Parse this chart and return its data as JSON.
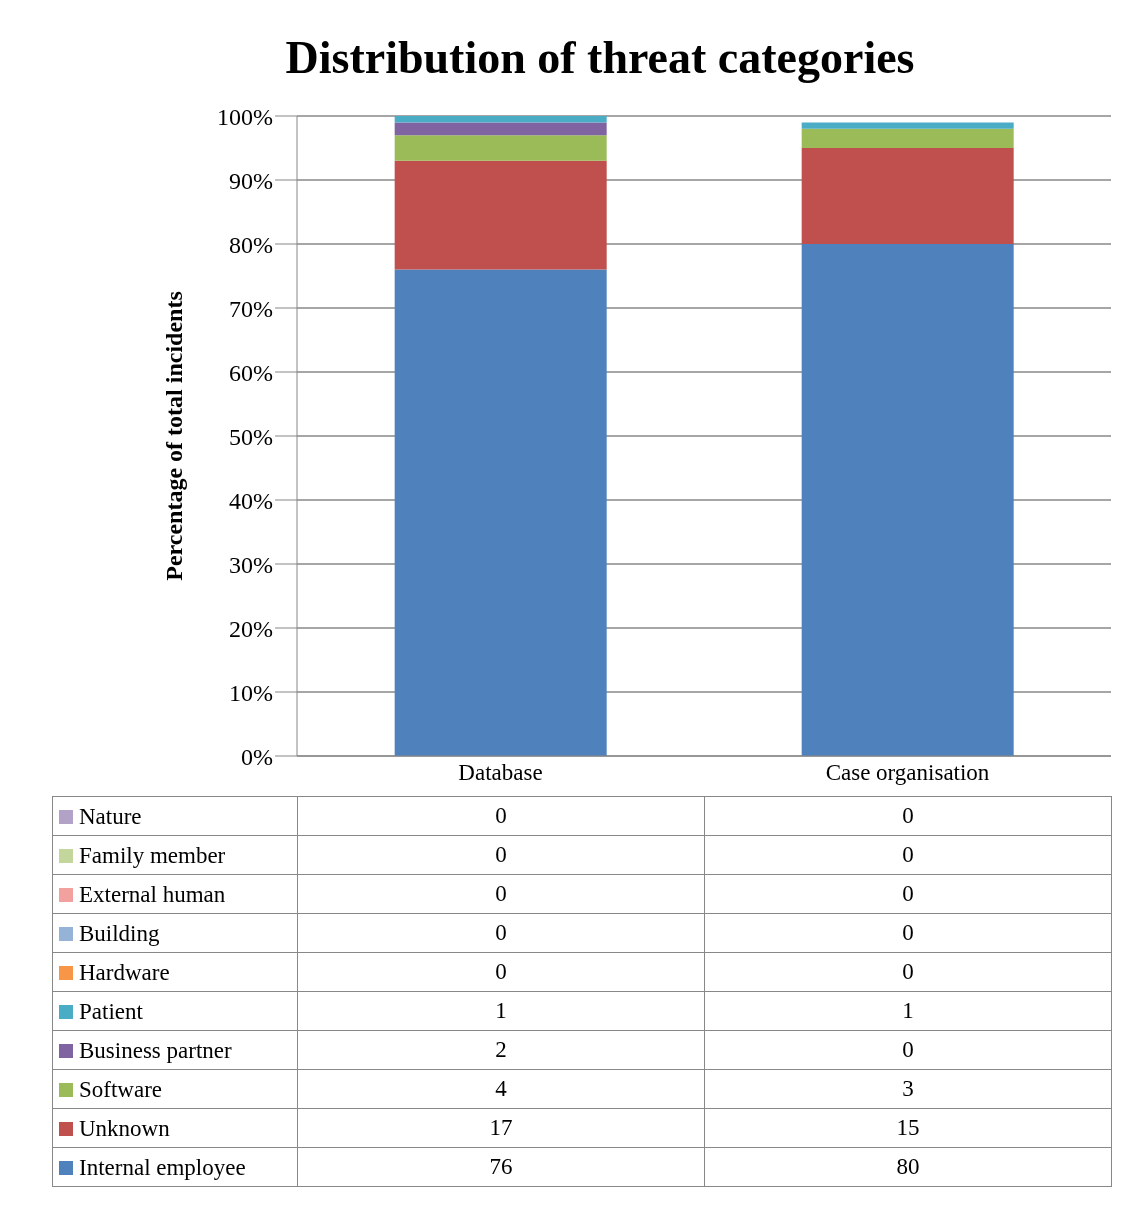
{
  "chart_data": {
    "type": "bar",
    "title": "Distribution of threat categories",
    "ylabel": "Percentage of total incidents",
    "categories": [
      "Database",
      "Case organisation"
    ],
    "stacked": true,
    "series": [
      {
        "name": "Internal employee",
        "color": "#4f81bd",
        "values": [
          76,
          80
        ],
        "value_labels": [
          "76",
          "80"
        ]
      },
      {
        "name": "Unknown",
        "color": "#c0504d",
        "values": [
          17,
          15
        ],
        "value_labels": [
          "17",
          "15"
        ]
      },
      {
        "name": "Software",
        "color": "#9bbb59",
        "values": [
          4,
          3
        ],
        "value_labels": [
          "4",
          "3"
        ]
      },
      {
        "name": "Business partner",
        "color": "#8064a2",
        "values": [
          2,
          0
        ],
        "value_labels": [
          "2",
          "0"
        ]
      },
      {
        "name": "Patient",
        "color": "#4bacc6",
        "values": [
          1,
          1
        ],
        "value_labels": [
          "1",
          "1"
        ]
      },
      {
        "name": "Hardware",
        "color": "#f79646",
        "values": [
          0,
          0
        ],
        "value_labels": [
          "0",
          "0"
        ]
      },
      {
        "name": "Building",
        "color": "#95b3d7",
        "values": [
          0,
          0
        ],
        "value_labels": [
          "0",
          "0"
        ]
      },
      {
        "name": "External human",
        "color": "#f2a19f",
        "values": [
          0,
          0
        ],
        "value_labels": [
          "0",
          "0"
        ]
      },
      {
        "name": "Family member",
        "color": "#c3d69b",
        "values": [
          0,
          0
        ],
        "value_labels": [
          "0",
          "0"
        ]
      },
      {
        "name": "Nature",
        "color": "#b3a2c7",
        "values": [
          0,
          0
        ],
        "value_labels": [
          "0",
          "0"
        ]
      }
    ],
    "ylim": [
      0,
      100
    ],
    "yticks": [
      {
        "value": 0,
        "label": "0%"
      },
      {
        "value": 10,
        "label": "10%"
      },
      {
        "value": 20,
        "label": "20%"
      },
      {
        "value": 30,
        "label": "30%"
      },
      {
        "value": 40,
        "label": "40%"
      },
      {
        "value": 50,
        "label": "50%"
      },
      {
        "value": 60,
        "label": "60%"
      },
      {
        "value": 70,
        "label": "70%"
      },
      {
        "value": 80,
        "label": "80%"
      },
      {
        "value": 90,
        "label": "90%"
      },
      {
        "value": 100,
        "label": "100%"
      }
    ],
    "grid": "y",
    "legend": "bottom"
  }
}
